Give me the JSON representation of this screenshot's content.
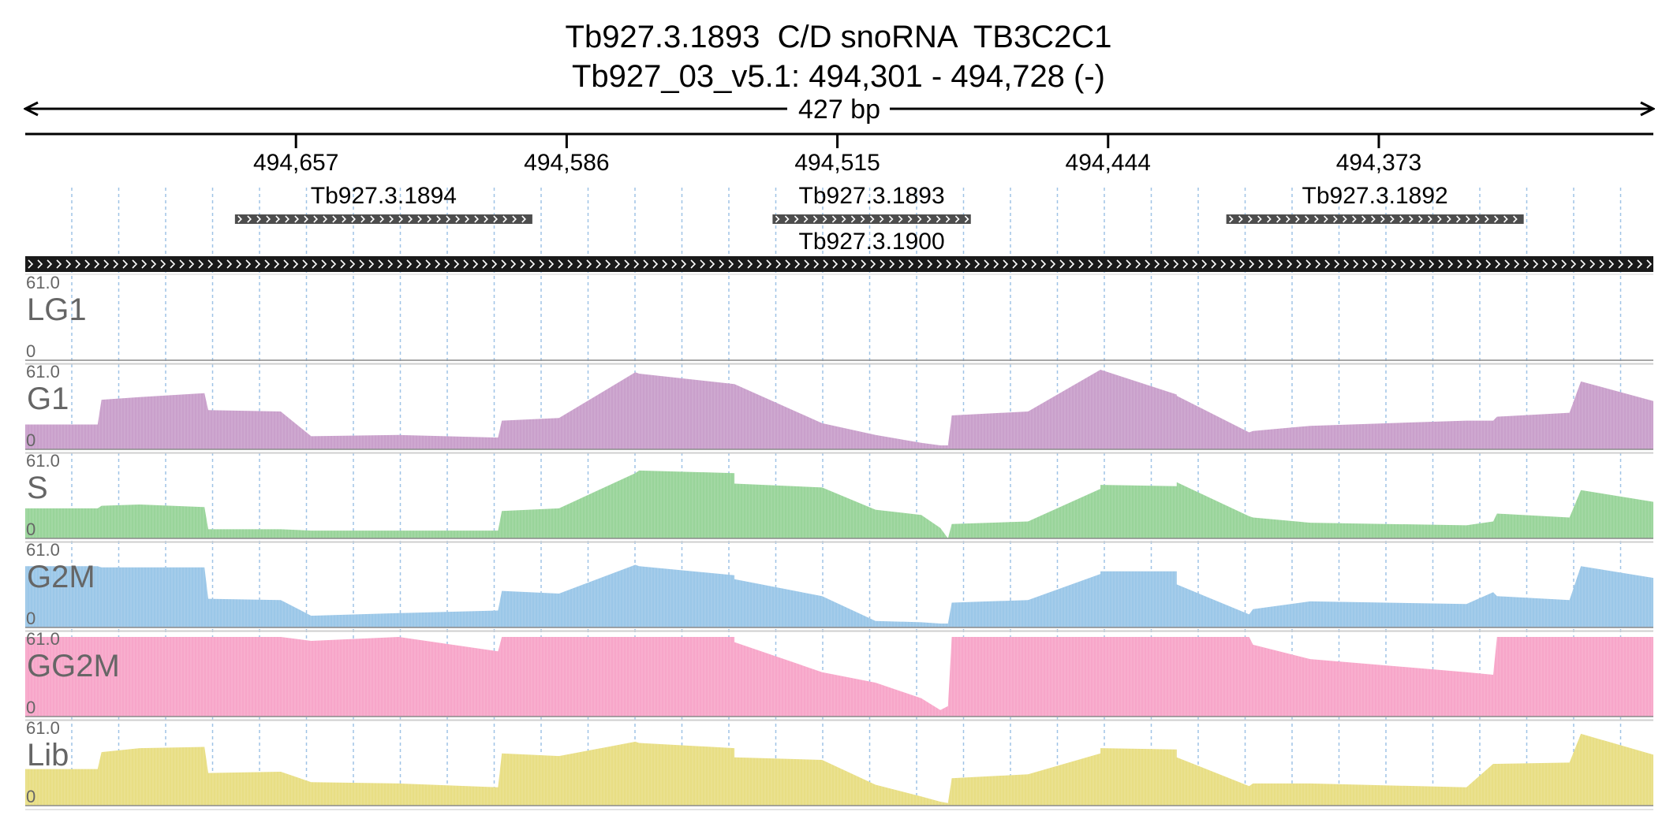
{
  "header": {
    "title_line1": "Tb927.3.1893  C/D snoRNA  TB3C2C1",
    "title_line2": "Tb927_03_v5.1: 494,301 - 494,728 (-)"
  },
  "chart_data": {
    "type": "area",
    "region": {
      "chromosome": "Tb927_03_v5.1",
      "start": 494301,
      "end": 494728,
      "strand": "-"
    },
    "span_label": "427 bp",
    "xlim": [
      494728,
      494301
    ],
    "x_ticks": [
      {
        "value": 494657,
        "label": "494,657"
      },
      {
        "value": 494586,
        "label": "494,586"
      },
      {
        "value": 494515,
        "label": "494,515"
      },
      {
        "value": 494444,
        "label": "494,444"
      },
      {
        "value": 494373,
        "label": "494,373"
      }
    ],
    "genes": [
      {
        "name": "Tb927.3.1894",
        "start": 494673,
        "end": 494595
      },
      {
        "name": "Tb927.3.1893",
        "start": 494532,
        "end": 494480
      },
      {
        "name": "Tb927.3.1892",
        "start": 494413,
        "end": 494335
      }
    ],
    "contig": {
      "name": "Tb927.3.1900",
      "start": 494728,
      "end": 494301
    },
    "ylim": [
      0,
      61.0
    ],
    "y_max_label": "61.0",
    "y_min_label": "0",
    "x": [
      494728,
      494709,
      494708,
      494698,
      494681,
      494680,
      494661,
      494653,
      494630,
      494604,
      494603,
      494588,
      494568,
      494567,
      494542,
      494542,
      494519,
      494505,
      494493,
      494488,
      494486,
      494485,
      494465,
      494446,
      494446,
      494426,
      494426,
      494407,
      494406,
      494391,
      494350,
      494343,
      494342,
      494323,
      494320,
      494301
    ],
    "series": [
      {
        "name": "LG1",
        "color": "#c9a0cb",
        "values": [
          0,
          0,
          0,
          0,
          0,
          0,
          0,
          0,
          0,
          0,
          0,
          0,
          0,
          0,
          0,
          0,
          0,
          0,
          0,
          0,
          0,
          0,
          0,
          0,
          0,
          0,
          0,
          0,
          0,
          0,
          0,
          0,
          0,
          0,
          0,
          0
        ]
      },
      {
        "name": "G1",
        "color": "#c9a0cb",
        "values": [
          19,
          19,
          38,
          40,
          43,
          30,
          29,
          10,
          11,
          9,
          22,
          24,
          59,
          58,
          50,
          50,
          20,
          11,
          5,
          3,
          3,
          26,
          29,
          61,
          61,
          42,
          41,
          13,
          14,
          18,
          22,
          22,
          25,
          28,
          52,
          37
        ]
      },
      {
        "name": "S",
        "color": "#99d49a",
        "values": [
          23,
          23,
          25,
          26,
          24,
          7,
          7,
          6,
          6,
          6,
          21,
          23,
          50,
          52,
          50,
          42,
          39,
          22,
          18,
          8,
          0,
          11,
          13,
          38,
          41,
          40,
          43,
          17,
          16,
          12,
          10,
          13,
          19,
          16,
          37,
          28
        ]
      },
      {
        "name": "G2M",
        "color": "#9bc7e8",
        "values": [
          47,
          47,
          46,
          46,
          46,
          22,
          21,
          9,
          11,
          13,
          28,
          26,
          48,
          47,
          40,
          37,
          24,
          5,
          4,
          3,
          3,
          19,
          21,
          41,
          43,
          43,
          33,
          10,
          14,
          20,
          18,
          27,
          24,
          21,
          47,
          38
        ]
      },
      {
        "name": "GG2M",
        "color": "#f7a6c9",
        "values": [
          61,
          61,
          61,
          61,
          61,
          61,
          61,
          58,
          61,
          50,
          61,
          61,
          61,
          61,
          61,
          57,
          34,
          26,
          14,
          5,
          8,
          61,
          61,
          61,
          61,
          61,
          61,
          61,
          55,
          44,
          34,
          32,
          61,
          61,
          61,
          61
        ]
      },
      {
        "name": "Lib",
        "color": "#e8de84",
        "values": [
          28,
          28,
          41,
          44,
          45,
          25,
          26,
          18,
          17,
          14,
          40,
          38,
          49,
          48,
          44,
          37,
          35,
          16,
          7,
          3,
          2,
          21,
          24,
          40,
          44,
          43,
          37,
          15,
          17,
          17,
          14,
          32,
          32,
          33,
          55,
          39
        ]
      }
    ]
  }
}
